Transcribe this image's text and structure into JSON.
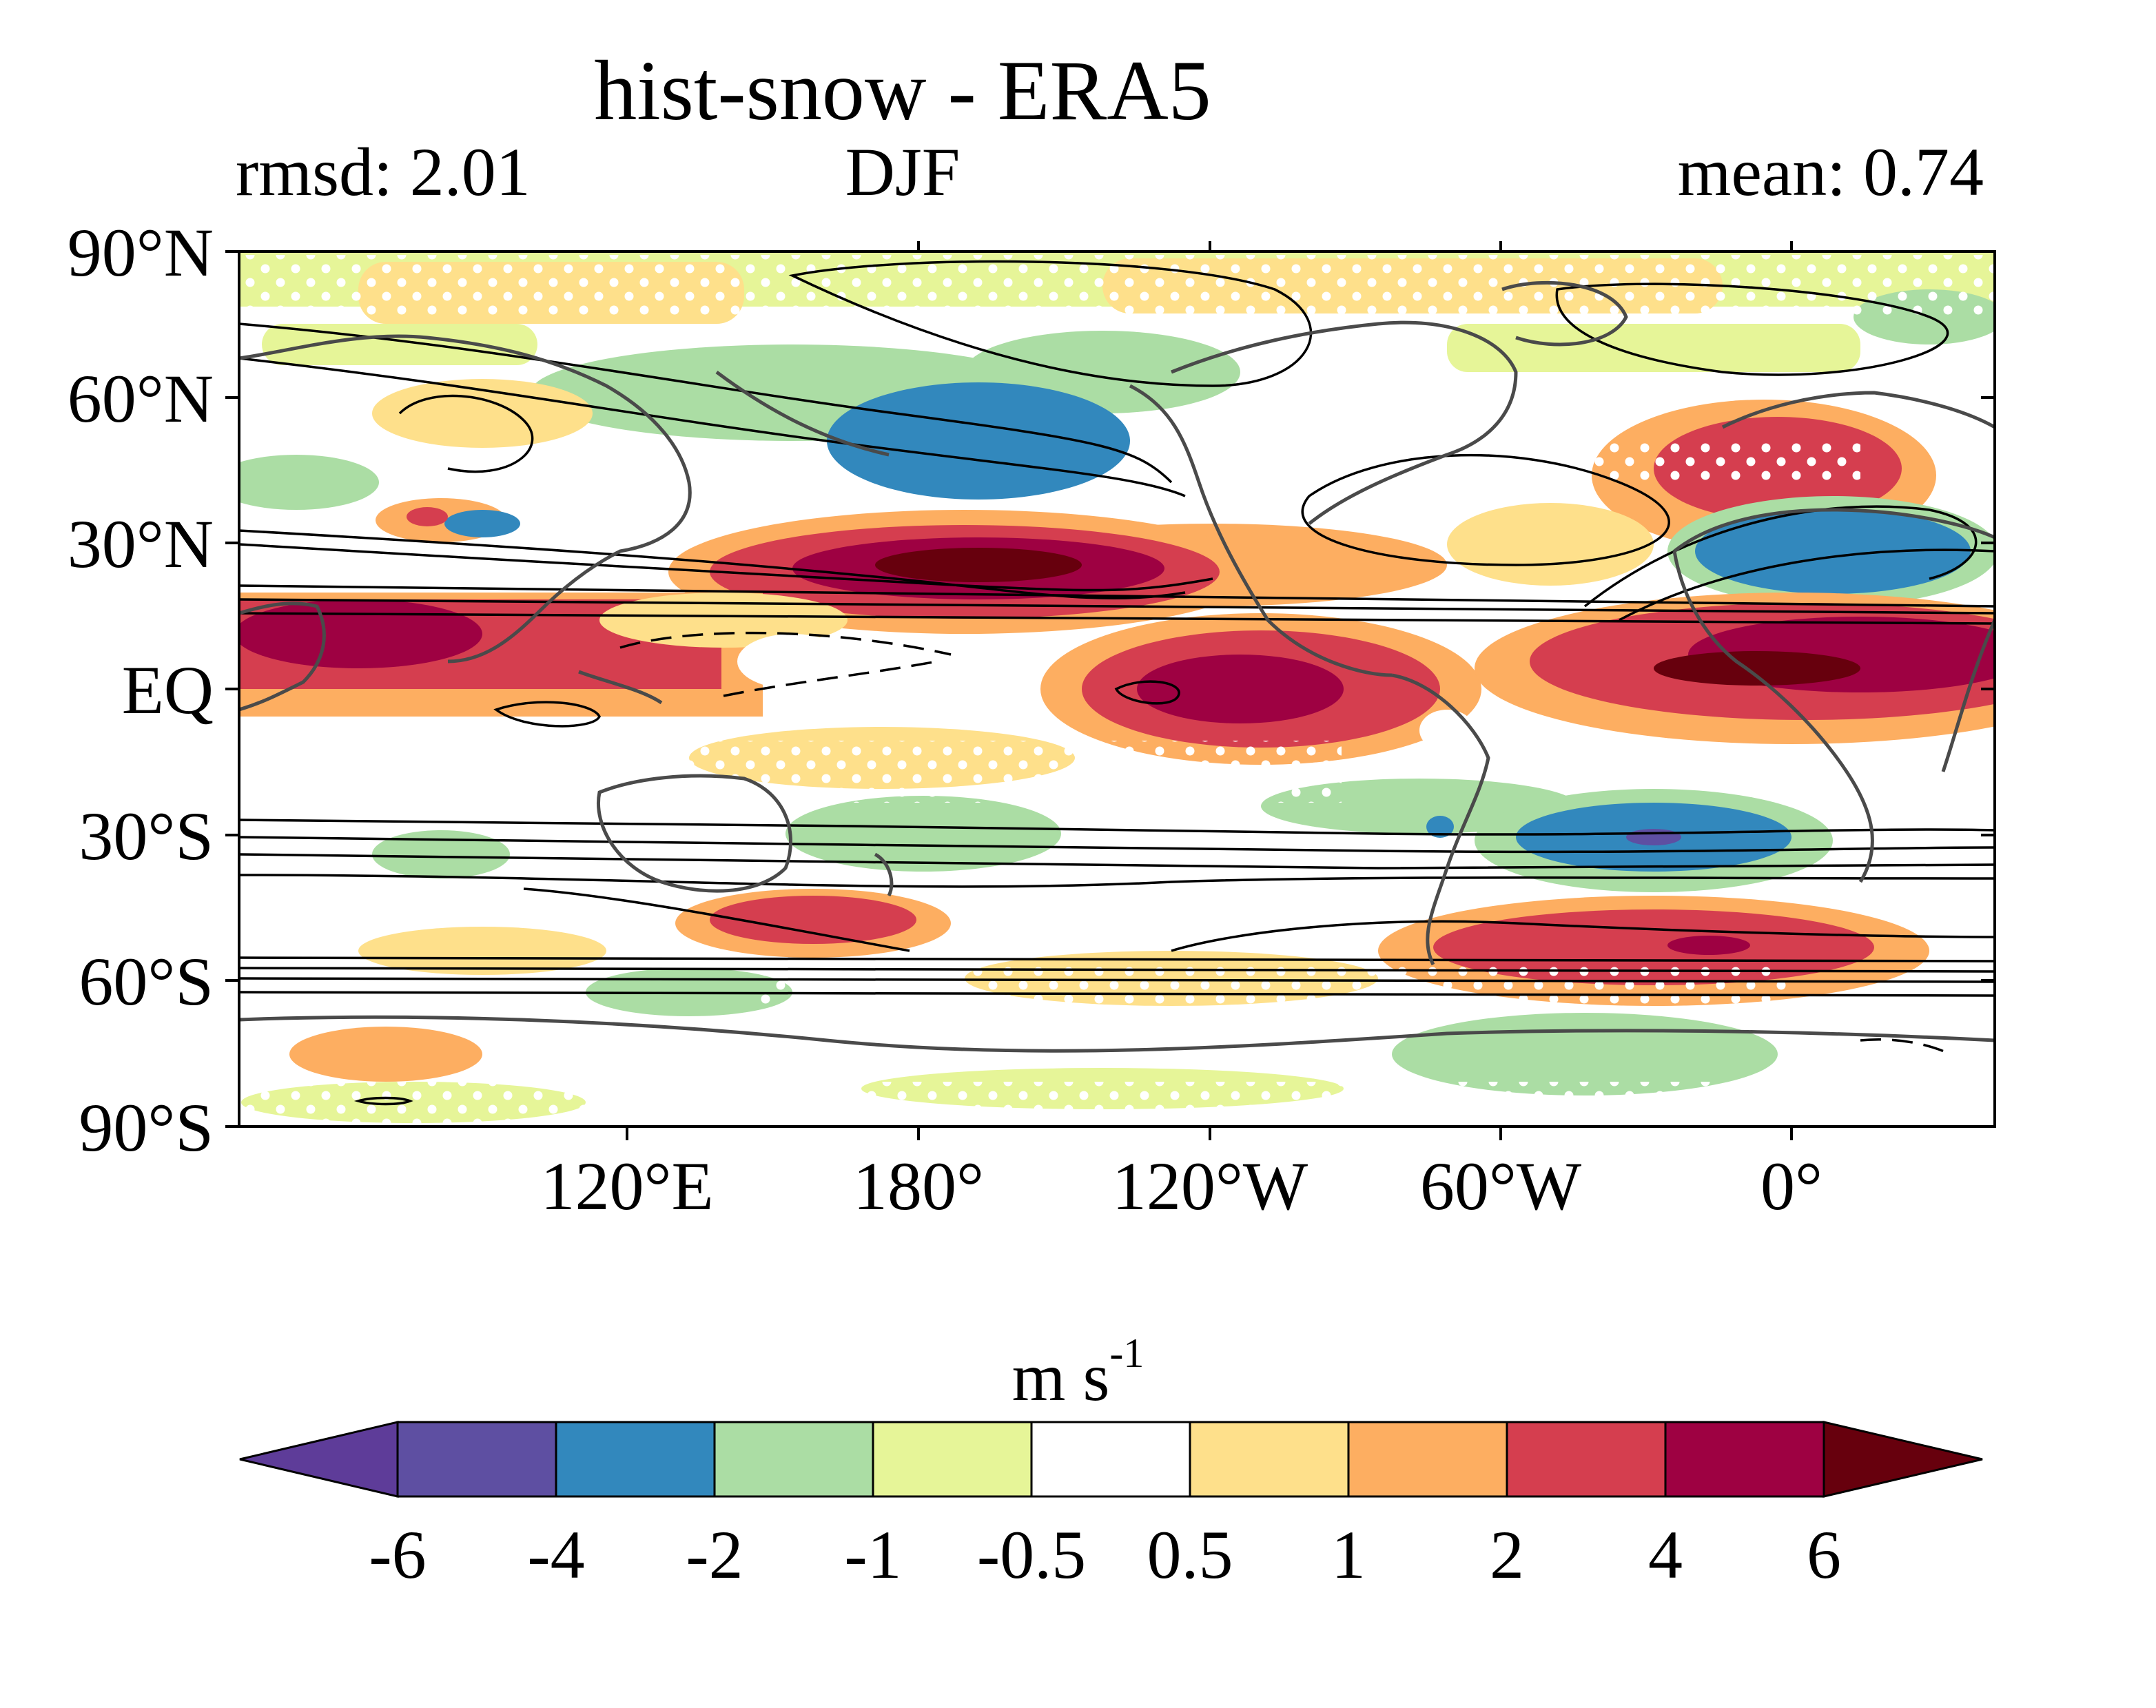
{
  "header": {
    "title": "hist-snow - ERA5",
    "left_stat": "rmsd: 2.01",
    "season": "DJF",
    "right_stat": "mean: 0.74"
  },
  "map": {
    "lat_labels": [
      "90°N",
      "60°N",
      "30°N",
      "EQ",
      "30°S",
      "60°S",
      "90°S"
    ],
    "lon_labels": [
      "120°E",
      "180°",
      "120°W",
      "60°W",
      "0°"
    ]
  },
  "colorbar": {
    "units_base": "m s",
    "units_exp": "-1",
    "levels": [
      "-6",
      "-4",
      "-2",
      "-1",
      "-0.5",
      "0.5",
      "1",
      "2",
      "4",
      "6"
    ],
    "colors": [
      "#5e3c99",
      "#5e4fa2",
      "#3288bd",
      "#abdda4",
      "#e6f598",
      "#ffffff",
      "#fee08b",
      "#fdae61",
      "#d53e4f",
      "#9e0142",
      "#67000d"
    ]
  }
}
